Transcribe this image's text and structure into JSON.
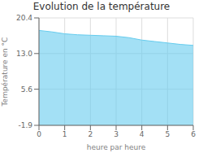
{
  "chart_data": {
    "type": "area",
    "title": "Evolution de la température",
    "x_label": "heure par heure",
    "y_label": "Température en °C",
    "x": [
      0,
      0.5,
      1,
      1.5,
      2,
      2.5,
      3,
      3.5,
      4,
      4.5,
      5,
      5.5,
      6
    ],
    "values": [
      17.8,
      17.5,
      17.1,
      16.9,
      16.8,
      16.7,
      16.6,
      16.3,
      15.8,
      15.5,
      15.2,
      14.9,
      14.7
    ],
    "color": "#66ccee",
    "xlim": [
      0,
      6
    ],
    "ylim": [
      -1.9,
      20.4
    ],
    "xticks": [
      0,
      1,
      2,
      3,
      4,
      5,
      6
    ],
    "yticks": [
      -1.9,
      5.6,
      {
        "value": 13.0,
        "label": "13.0"
      },
      20.4
    ],
    "grid": true
  }
}
